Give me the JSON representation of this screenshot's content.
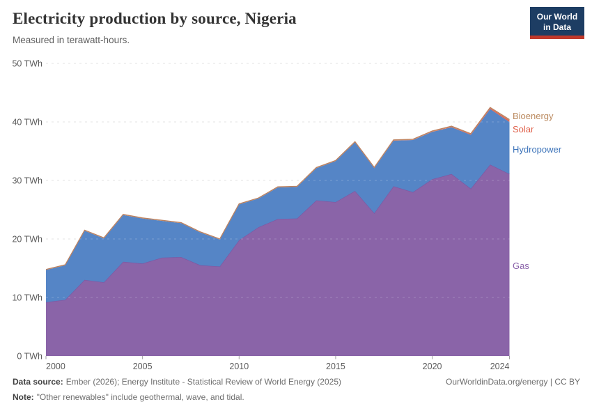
{
  "header": {
    "title": "Electricity production by source, Nigeria",
    "subtitle": "Measured in terawatt-hours.",
    "logo_line1": "Our World",
    "logo_line2": "in Data",
    "logo_bg": "#1d3d63",
    "logo_bar": "#c0392b"
  },
  "footer": {
    "source_label": "Data source:",
    "source_text": "Ember (2026); Energy Institute - Statistical Review of World Energy (2025)",
    "note_label": "Note:",
    "note_text": "\"Other renewables\" include geothermal, wave, and tidal.",
    "link": "OurWorldinData.org/energy | CC BY"
  },
  "chart_data": {
    "type": "area",
    "stacked": true,
    "title": "Electricity production by source, Nigeria",
    "xlabel": "",
    "ylabel": "",
    "unit": "TWh",
    "xlim": [
      2000,
      2024
    ],
    "ylim": [
      0,
      50
    ],
    "grid": "dashed-horizontal",
    "legend_position": "right",
    "xticks": [
      2000,
      2005,
      2010,
      2015,
      2020,
      2024
    ],
    "yticks": [
      0,
      10,
      20,
      30,
      40,
      50
    ],
    "ytick_suffix": " TWh",
    "x": [
      2000,
      2001,
      2002,
      2003,
      2004,
      2005,
      2006,
      2007,
      2008,
      2009,
      2010,
      2011,
      2012,
      2013,
      2014,
      2015,
      2016,
      2017,
      2018,
      2019,
      2020,
      2021,
      2022,
      2023,
      2024
    ],
    "series": [
      {
        "name": "Gas",
        "color": "#8A64A8",
        "stroke": "#7E57A2",
        "label_color": "#8961A9",
        "values": [
          9.2,
          9.6,
          13.0,
          12.6,
          16.1,
          15.8,
          16.8,
          16.9,
          15.5,
          15.3,
          19.8,
          22.0,
          23.4,
          23.5,
          26.6,
          26.3,
          28.2,
          24.4,
          29.0,
          28.0,
          30.2,
          31.1,
          28.6,
          32.7,
          31.1
        ]
      },
      {
        "name": "Hydropower",
        "color": "#5585C6",
        "stroke": "none",
        "label_color": "#3D74BA",
        "values": [
          5.5,
          5.9,
          8.4,
          7.5,
          8.0,
          7.7,
          6.3,
          5.8,
          5.6,
          4.6,
          6.1,
          4.9,
          5.4,
          5.4,
          5.5,
          7.0,
          8.3,
          7.7,
          7.8,
          8.9,
          8.1,
          8.0,
          9.2,
          9.5,
          8.9
        ]
      },
      {
        "name": "Solar",
        "color": "#E2604A",
        "stroke": "none",
        "label_color": "#E0624C",
        "values": [
          0,
          0,
          0,
          0,
          0,
          0,
          0,
          0,
          0,
          0,
          0,
          0,
          0,
          0,
          0,
          0,
          0.02,
          0.03,
          0.03,
          0.04,
          0.05,
          0.07,
          0.1,
          0.15,
          0.25
        ]
      },
      {
        "name": "Bioenergy",
        "color": "#C8906C",
        "stroke": "#BC8260",
        "label_color": "#BB8A5F",
        "values": [
          0.1,
          0.1,
          0.1,
          0.1,
          0.1,
          0.1,
          0.1,
          0.1,
          0.1,
          0.1,
          0.1,
          0.1,
          0.1,
          0.1,
          0.1,
          0.1,
          0.1,
          0.1,
          0.1,
          0.1,
          0.1,
          0.1,
          0.1,
          0.12,
          0.15
        ]
      }
    ]
  }
}
